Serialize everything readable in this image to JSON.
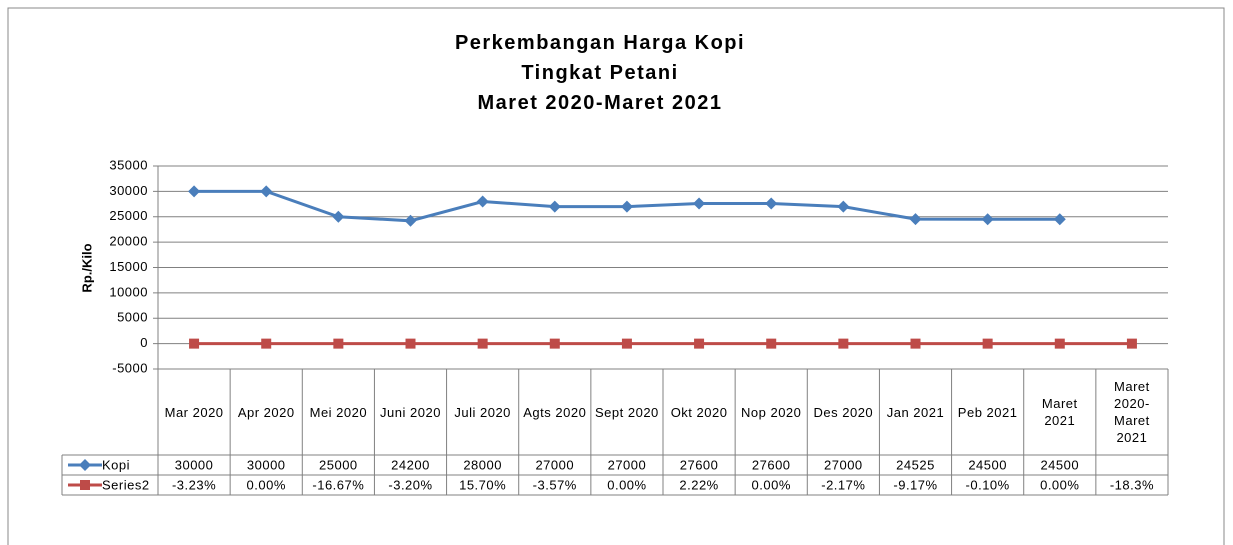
{
  "chart_data": {
    "type": "line",
    "title": [
      "Perkembangan Harga Kopi",
      "Tingkat Petani",
      "Maret 2020-Maret 2021"
    ],
    "y_label": "Rp./Kilo",
    "categories": [
      "Mar 2020",
      "Apr 2020",
      "Mei 2020",
      "Juni 2020",
      "Juli 2020",
      "Agts 2020",
      "Sept 2020",
      "Okt 2020",
      "Nop 2020",
      "Des 2020",
      "Jan 2021",
      "Peb 2021",
      "Maret 2021",
      "Maret 2020-Maret 2021"
    ],
    "series": [
      {
        "name": "Kopi",
        "color": "#4a7ebb",
        "marker": "diamond",
        "values": [
          30000,
          30000,
          25000,
          24200,
          28000,
          27000,
          27000,
          27600,
          27600,
          27000,
          24525,
          24500,
          24500,
          null
        ]
      },
      {
        "name": "Series2",
        "color": "#be4b48",
        "marker": "square",
        "values": [
          -0.0323,
          0,
          -0.1667,
          -0.032,
          0.157,
          -0.0357,
          0,
          0.0222,
          0,
          -0.0217,
          -0.0917,
          -0.001,
          0,
          -0.183
        ],
        "value_labels": [
          "-3.23%",
          "0.00%",
          "-16.67%",
          "-3.20%",
          "15.70%",
          "-3.57%",
          "0.00%",
          "2.22%",
          "0.00%",
          "-2.17%",
          "-9.17%",
          "-0.10%",
          "0.00%",
          "-18.3%"
        ]
      }
    ],
    "ylim": [
      -5000,
      35000
    ],
    "yticks": [
      -5000,
      0,
      5000,
      10000,
      15000,
      20000,
      25000,
      30000,
      35000
    ],
    "grid": true,
    "data_table": true
  }
}
